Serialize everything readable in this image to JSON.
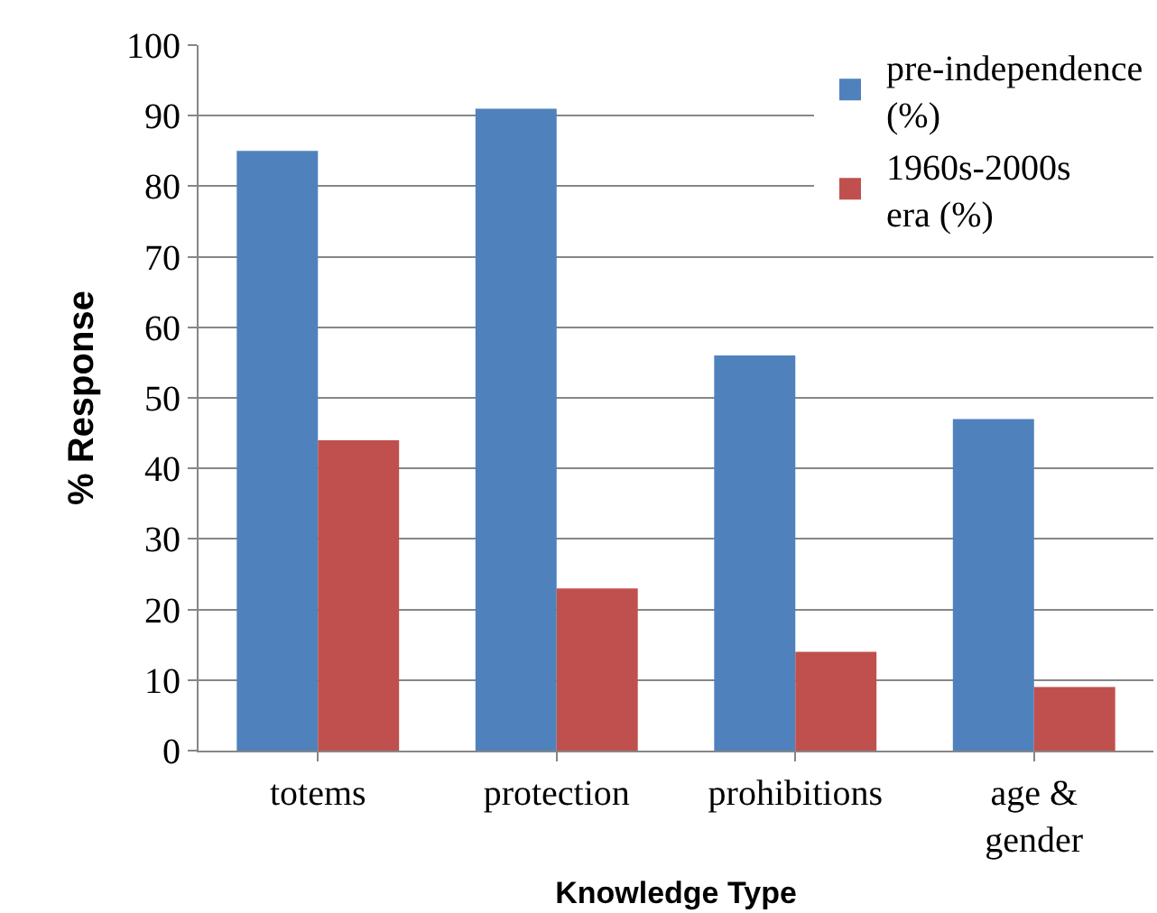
{
  "chart_data": {
    "type": "bar",
    "xlabel": "Knowledge Type",
    "ylabel": "% Response",
    "categories": [
      "totems",
      "protection",
      "prohibitions",
      "age & gender"
    ],
    "series": [
      {
        "name": "pre-independence (%)",
        "color": "#4f81bd",
        "values": [
          85,
          91,
          56,
          47
        ]
      },
      {
        "name": "1960s-2000s era (%)",
        "color": "#c0504d",
        "values": [
          44,
          23,
          14,
          9
        ]
      }
    ],
    "ylim": [
      0,
      100
    ],
    "yticks": [
      0,
      10,
      20,
      30,
      40,
      50,
      60,
      70,
      80,
      90,
      100
    ],
    "grid": "y",
    "legend": "top right"
  }
}
